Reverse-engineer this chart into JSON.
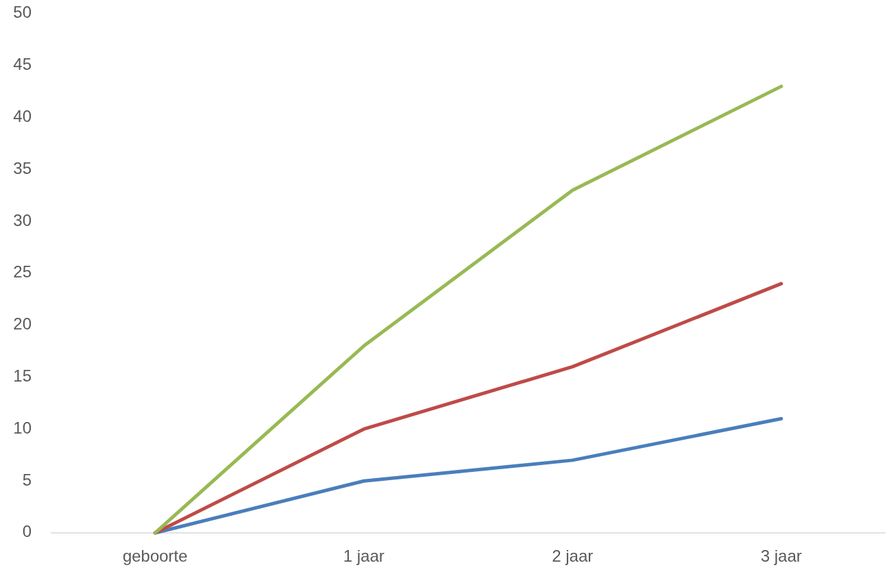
{
  "chart_data": {
    "type": "line",
    "categories": [
      "geboorte",
      "1 jaar",
      "2 jaar",
      "3 jaar"
    ],
    "series": [
      {
        "color": "#4a7ebb",
        "values": [
          0,
          5,
          7,
          11
        ]
      },
      {
        "color": "#be4b48",
        "values": [
          0,
          10,
          16,
          24
        ]
      },
      {
        "color": "#98b954",
        "values": [
          0,
          18,
          33,
          43
        ]
      }
    ],
    "ylim": [
      0,
      50
    ],
    "yticks": [
      0,
      5,
      10,
      15,
      20,
      25,
      30,
      35,
      40,
      45,
      50
    ]
  }
}
